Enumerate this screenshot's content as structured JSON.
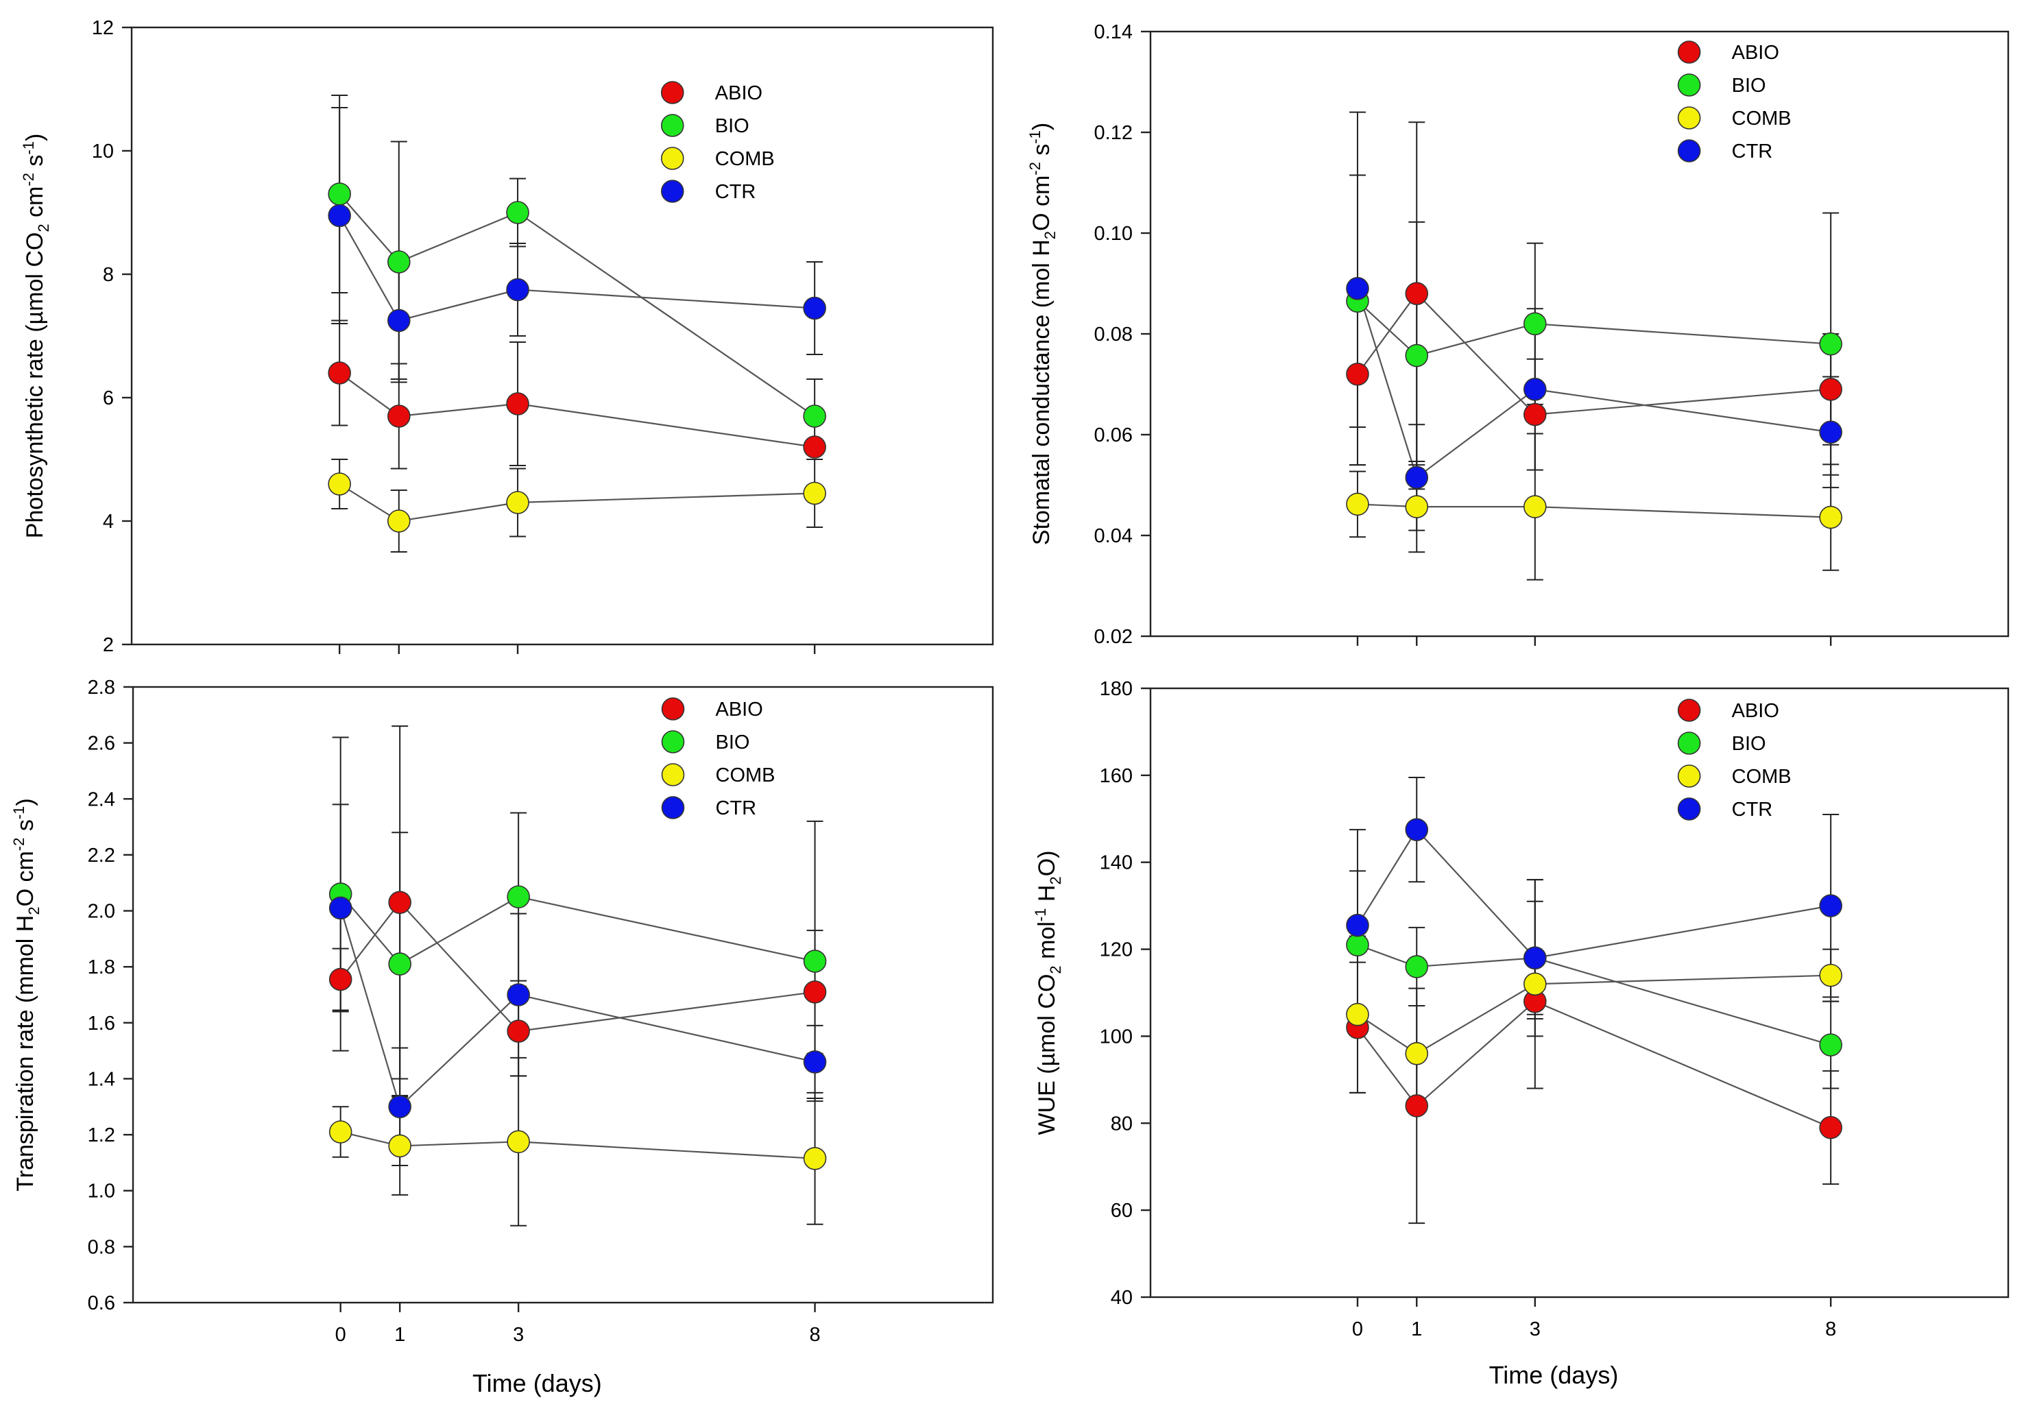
{
  "colors": {
    "ABIO": "#e60a0a",
    "BIO": "#1ee61e",
    "COMB": "#f5f00a",
    "CTR": "#0a14e6"
  },
  "chart_data": [
    {
      "type": "scatter",
      "panel": "top-left",
      "title": "",
      "xlabel": "",
      "ylabel": "Photosynthetic rate (µmol CO2 cm-2 s-1)",
      "ylabel_parts": {
        "base": "Photosynthetic rate (µmol CO",
        "sub": "2",
        "mid": " cm",
        "sup1": "-2",
        "mid2": " s",
        "sup2": "-1",
        "end": ")"
      },
      "xlim": [
        -3.5,
        11
      ],
      "ylim": [
        2,
        12
      ],
      "x": [
        0,
        1,
        3,
        8
      ],
      "x_tick_labels": [
        "0",
        "1",
        "3",
        "8"
      ],
      "y_ticks": [
        2,
        4,
        6,
        8,
        10,
        12
      ],
      "y_tick_labels": [
        "2",
        "4",
        "6",
        "8",
        "10",
        "12"
      ],
      "legend": [
        "ABIO",
        "BIO",
        "COMB",
        "CTR"
      ],
      "legend_position": "top-right",
      "series": [
        {
          "name": "ABIO",
          "values": [
            6.4,
            5.7,
            5.9,
            5.2
          ],
          "errors": [
            0.85,
            0.85,
            1.0,
            0.0
          ]
        },
        {
          "name": "BIO",
          "values": [
            9.3,
            8.2,
            9.0,
            5.7
          ],
          "errors": [
            1.6,
            1.95,
            0.55,
            0.6
          ]
        },
        {
          "name": "COMB",
          "values": [
            4.6,
            4.0,
            4.3,
            4.45
          ],
          "errors": [
            0.4,
            0.5,
            0.55,
            0.55
          ]
        },
        {
          "name": "CTR",
          "values": [
            8.95,
            7.25,
            7.75,
            7.45
          ],
          "errors": [
            1.75,
            0.95,
            0.75,
            0.75
          ]
        }
      ]
    },
    {
      "type": "scatter",
      "panel": "top-right",
      "title": "",
      "xlabel": "",
      "ylabel": "Stomatal conductance (mol H2O cm-2 s-1)",
      "ylabel_parts": {
        "base": "Stomatal conductance (mol H",
        "sub": "2",
        "mid": "O cm",
        "sup1": "-2",
        "mid2": " s",
        "sup2": "-1",
        "end": ")"
      },
      "xlim": [
        -3.5,
        11
      ],
      "ylim": [
        0.02,
        0.14
      ],
      "x": [
        0,
        1,
        3,
        8
      ],
      "x_tick_labels": [
        "0",
        "1",
        "3",
        "8"
      ],
      "y_ticks": [
        0.02,
        0.04,
        0.06,
        0.08,
        0.1,
        0.12,
        0.14
      ],
      "y_tick_labels": [
        "0.02",
        "0.04",
        "0.06",
        "0.08",
        "0.10",
        "0.12",
        "0.14"
      ],
      "legend": [
        "ABIO",
        "BIO",
        "COMB",
        "CTR"
      ],
      "legend_position": "top-right",
      "series": [
        {
          "name": "ABIO",
          "values": [
            0.072,
            0.088,
            0.064,
            0.069
          ],
          "errors": [
            0.018,
            0.034,
            0.011,
            0.011
          ]
        },
        {
          "name": "BIO",
          "values": [
            0.0865,
            0.0757,
            0.082,
            0.078
          ],
          "errors": [
            0.025,
            0.0265,
            0.016,
            0.026
          ]
        },
        {
          "name": "COMB",
          "values": [
            0.0462,
            0.0457,
            0.0457,
            0.0436
          ],
          "errors": [
            0.0065,
            0.009,
            0.0145,
            0.0105
          ]
        },
        {
          "name": "CTR",
          "values": [
            0.089,
            0.0515,
            0.069,
            0.0605
          ],
          "errors": [
            0.035,
            0.0105,
            0.016,
            0.011
          ]
        }
      ]
    },
    {
      "type": "scatter",
      "panel": "bottom-left",
      "title": "",
      "xlabel": "Time (days)",
      "ylabel": "Transpiration rate (mmol H2O cm-2 s-1)",
      "ylabel_parts": {
        "base": "Transpiration rate (mmol H",
        "sub": "2",
        "mid": "O cm",
        "sup1": "-2",
        "mid2": " s",
        "sup2": "-1",
        "end": ")"
      },
      "xlim": [
        -3.5,
        11
      ],
      "ylim": [
        0.6,
        2.8
      ],
      "x": [
        0,
        1,
        3,
        8
      ],
      "x_tick_labels": [
        "0",
        "1",
        "3",
        "8"
      ],
      "y_ticks": [
        0.6,
        0.8,
        1.0,
        1.2,
        1.4,
        1.6,
        1.8,
        2.0,
        2.2,
        2.4,
        2.6,
        2.8
      ],
      "y_tick_labels": [
        "0.6",
        "0.8",
        "1.0",
        "1.2",
        "1.4",
        "1.6",
        "1.8",
        "2.0",
        "2.2",
        "2.4",
        "2.6",
        "2.8"
      ],
      "legend": [
        "ABIO",
        "BIO",
        "COMB",
        "CTR"
      ],
      "legend_position": "top-right",
      "series": [
        {
          "name": "ABIO",
          "values": [
            1.755,
            2.03,
            1.57,
            1.71
          ],
          "errors": [
            0.11,
            0.63,
            0.16,
            0.22
          ]
        },
        {
          "name": "BIO",
          "values": [
            2.06,
            1.81,
            2.05,
            1.82
          ],
          "errors": [
            0.56,
            0.47,
            0.3,
            0.5
          ]
        },
        {
          "name": "COMB",
          "values": [
            1.21,
            1.16,
            1.175,
            1.115
          ],
          "errors": [
            0.09,
            0.175,
            0.3,
            0.235
          ]
        },
        {
          "name": "CTR",
          "values": [
            2.01,
            1.3,
            1.7,
            1.46
          ],
          "errors": [
            0.37,
            0.21,
            0.29,
            0.13
          ]
        }
      ]
    },
    {
      "type": "scatter",
      "panel": "bottom-right",
      "title": "",
      "xlabel": "Time (days)",
      "ylabel": "WUE (µmol CO2 mol-1 H2O)",
      "ylabel_parts": {
        "base": "WUE (µmol CO",
        "sub": "2",
        "mid": " mol",
        "sup1": "-1",
        "mid2": " H",
        "sub2": "2",
        "end": "O)"
      },
      "xlim": [
        -3.5,
        11
      ],
      "ylim": [
        40,
        180
      ],
      "x": [
        0,
        1,
        3,
        8
      ],
      "x_tick_labels": [
        "0",
        "1",
        "3",
        "8"
      ],
      "y_ticks": [
        40,
        60,
        80,
        100,
        120,
        140,
        160,
        180
      ],
      "y_tick_labels": [
        "40",
        "60",
        "80",
        "100",
        "120",
        "140",
        "160",
        "180"
      ],
      "legend": [
        "ABIO",
        "BIO",
        "COMB",
        "CTR"
      ],
      "legend_position": "top-right",
      "series": [
        {
          "name": "ABIO",
          "values": [
            102,
            84,
            108,
            79
          ],
          "errors": [
            15,
            27,
            4,
            13
          ]
        },
        {
          "name": "BIO",
          "values": [
            121,
            116,
            118,
            98
          ],
          "errors": [
            17,
            9,
            13,
            10
          ]
        },
        {
          "name": "COMB",
          "values": [
            105,
            96,
            112,
            114
          ],
          "errors": [
            18,
            11,
            24,
            6
          ]
        },
        {
          "name": "CTR",
          "values": [
            125.5,
            147.5,
            118,
            130
          ],
          "errors": [
            22,
            12,
            18,
            21
          ]
        }
      ]
    }
  ]
}
